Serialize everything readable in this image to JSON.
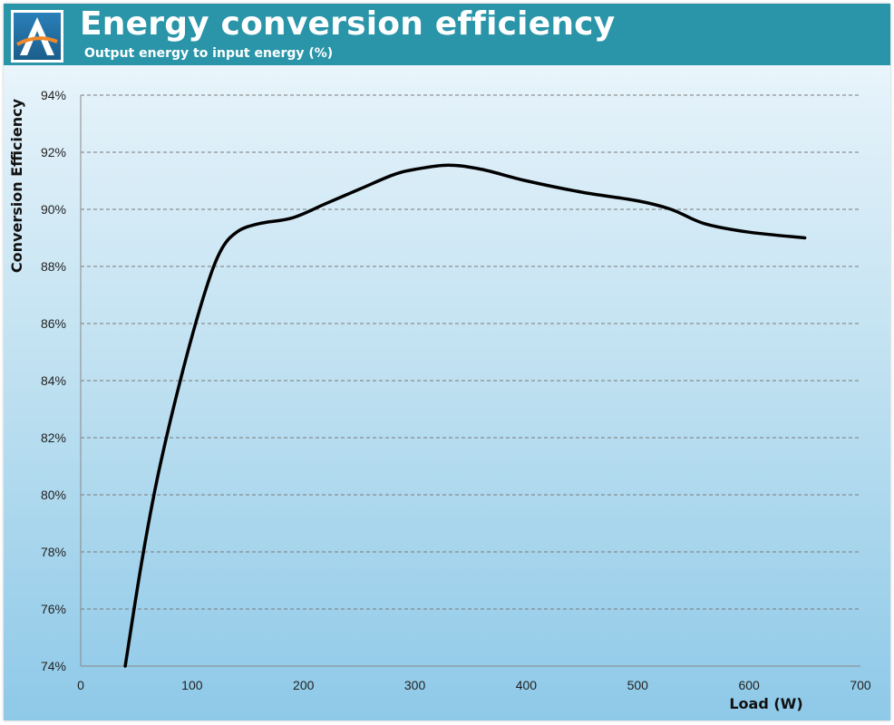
{
  "header": {
    "title": "Energy conversion efficiency",
    "subtitle": "Output energy to input energy (%)",
    "logo_letter": "A",
    "background": "#2a95a8"
  },
  "chart_data": {
    "type": "line",
    "title": "Energy conversion efficiency",
    "subtitle": "Output energy to input energy (%)",
    "xlabel": "Load (W)",
    "ylabel": "Conversion Efficiency",
    "xlim": [
      0,
      700
    ],
    "ylim": [
      74,
      94
    ],
    "x_ticks": [
      0,
      100,
      200,
      300,
      400,
      500,
      600,
      700
    ],
    "y_ticks": [
      74,
      76,
      78,
      80,
      82,
      84,
      86,
      88,
      90,
      92,
      94
    ],
    "x_tick_labels": [
      "0",
      "100",
      "200",
      "300",
      "400",
      "500",
      "600",
      "700"
    ],
    "y_tick_labels": [
      "74%",
      "76%",
      "78%",
      "80%",
      "82%",
      "84%",
      "86%",
      "88%",
      "90%",
      "92%",
      "94%"
    ],
    "grid": "horizontal dashed",
    "line_color": "#000000",
    "series": [
      {
        "x": [
          40,
          55,
          70,
          90,
          110,
          125,
          140,
          160,
          190,
          220,
          250,
          280,
          300,
          330,
          360,
          400,
          450,
          500,
          530,
          560,
          600,
          650
        ],
        "values": [
          74,
          77.7,
          80.8,
          84.1,
          86.9,
          88.5,
          89.2,
          89.5,
          89.7,
          90.2,
          90.7,
          91.2,
          91.4,
          91.55,
          91.4,
          91.0,
          90.6,
          90.3,
          90.0,
          89.5,
          89.2,
          89.0
        ]
      }
    ]
  }
}
